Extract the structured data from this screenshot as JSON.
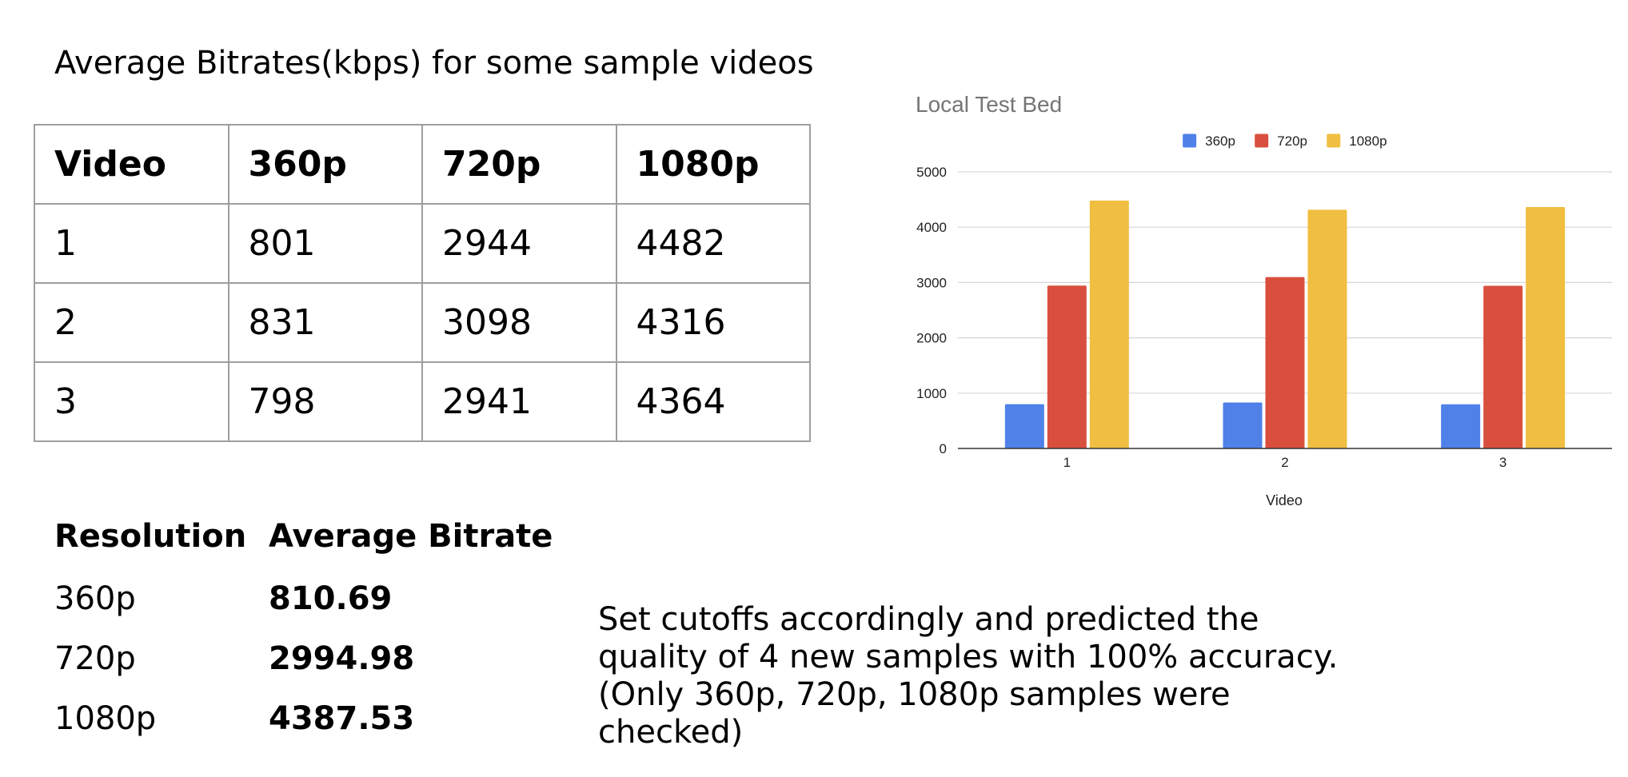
{
  "title": "Average Bitrates(kbps) for some sample videos",
  "table": {
    "headers": [
      "Video",
      "360p",
      "720p",
      "1080p"
    ],
    "rows": [
      [
        "1",
        "801",
        "2944",
        "4482"
      ],
      [
        "2",
        "831",
        "3098",
        "4316"
      ],
      [
        "3",
        "798",
        "2941",
        "4364"
      ]
    ]
  },
  "chart_data": {
    "type": "bar",
    "title": "Local Test Bed",
    "xlabel": "Video",
    "ylabel": "",
    "categories": [
      "1",
      "2",
      "3"
    ],
    "series": [
      {
        "name": "360p",
        "values": [
          801,
          831,
          798
        ],
        "color": "#4f81e8"
      },
      {
        "name": "720p",
        "values": [
          2944,
          3098,
          2941
        ],
        "color": "#d94f3e"
      },
      {
        "name": "1080p",
        "values": [
          4482,
          4316,
          4364
        ],
        "color": "#f0be40"
      }
    ],
    "ylim": [
      0,
      5000
    ],
    "yticks": [
      0,
      1000,
      2000,
      3000,
      4000,
      5000
    ],
    "grid": true,
    "legend": "top-center"
  },
  "summary": {
    "headers": {
      "resolution": "Resolution",
      "average": "Average Bitrate"
    },
    "rows": [
      {
        "resolution": "360p",
        "average": "810.69"
      },
      {
        "resolution": "720p",
        "average": "2994.98"
      },
      {
        "resolution": "1080p",
        "average": "4387.53"
      }
    ]
  },
  "note": {
    "lines": [
      "Set cutoffs accordingly and predicted the",
      "quality of 4 new samples with 100% accuracy.",
      "(Only 360p, 720p, 1080p samples were",
      "checked)"
    ]
  }
}
